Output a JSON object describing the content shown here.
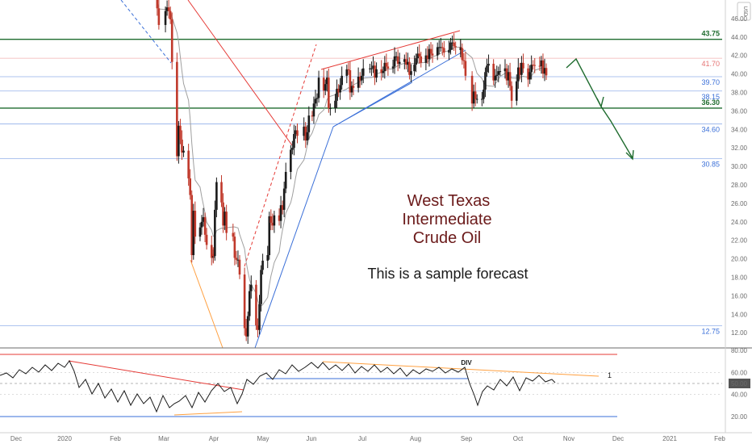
{
  "currency": "USD",
  "annotations": {
    "title_lines": [
      "West Texas",
      "Intermediate",
      "Crude Oil"
    ],
    "note": "This is a sample forecast",
    "div_label": "DIV",
    "rsi_marker": "1"
  },
  "colors": {
    "candle_up": "#1a1a1a",
    "candle_down": "#c0392b",
    "trend_red": "#e53935",
    "trend_blue": "#3a6fd8",
    "orange": "#ffa040",
    "green_level": "#1e6b2e",
    "forecast_arrow": "#1e6b2e",
    "ma": "#a0a0a0"
  },
  "chart_data": {
    "type": "candlestick",
    "price_axis": {
      "ylim": [
        10.5,
        48.0
      ],
      "ticks": [
        "12.00",
        "14.00",
        "16.00",
        "18.00",
        "20.00",
        "22.00",
        "24.00",
        "26.00",
        "28.00",
        "30.00",
        "32.00",
        "34.00",
        "36.00",
        "38.00",
        "40.00",
        "42.00",
        "44.00",
        "46.00"
      ]
    },
    "time_axis": {
      "labels": [
        "Dec",
        "2020",
        "Feb",
        "Mar",
        "Apr",
        "May",
        "Jun",
        "Jul",
        "Aug",
        "Sep",
        "Oct",
        "Nov",
        "Dec",
        "2021",
        "Feb"
      ]
    },
    "levels": [
      {
        "value": 43.75,
        "label": "43.75",
        "color": "#1e6b2e",
        "style": "major"
      },
      {
        "value": 41.7,
        "label": "41.70",
        "color": "#e57373",
        "style": "minor"
      },
      {
        "value": 39.7,
        "label": "39.70",
        "color": "#3a6fd8",
        "style": "minor"
      },
      {
        "value": 38.15,
        "label": "38.15",
        "color": "#3a6fd8",
        "style": "minor"
      },
      {
        "value": 36.3,
        "label": "36.30",
        "color": "#1e6b2e",
        "style": "major"
      },
      {
        "value": 34.6,
        "label": "34.60",
        "color": "#3a6fd8",
        "style": "minor"
      },
      {
        "value": 30.85,
        "label": "30.85",
        "color": "#3a6fd8",
        "style": "minor"
      },
      {
        "value": 12.75,
        "label": "12.75",
        "color": "#3a6fd8",
        "style": "minor"
      }
    ],
    "series": [
      {
        "name": "",
        "type": "candlestick",
        "values": [
          {
            "t": "Feb 26",
            "close": 48.7
          },
          {
            "t": "Feb 27",
            "close": 47.1
          },
          {
            "t": "Feb 28",
            "close": 45.3
          },
          {
            "t": "Mar 02",
            "close": 46.8
          },
          {
            "t": "Mar 03",
            "close": 47.2
          },
          {
            "t": "Mar 04",
            "close": 46.8
          },
          {
            "t": "Mar 05",
            "close": 45.9
          },
          {
            "t": "Mar 06",
            "close": 41.3
          },
          {
            "t": "Mar 09",
            "close": 31.1
          },
          {
            "t": "Mar 10",
            "close": 34.4
          },
          {
            "t": "Mar 11",
            "close": 32.9
          },
          {
            "t": "Mar 12",
            "close": 31.5
          },
          {
            "t": "Mar 13",
            "close": 31.7
          },
          {
            "t": "Mar 16",
            "close": 28.7
          },
          {
            "t": "Mar 17",
            "close": 26.9
          },
          {
            "t": "Mar 18",
            "close": 20.4
          },
          {
            "t": "Mar 19",
            "close": 25.2
          },
          {
            "t": "Mar 20",
            "close": 22.4
          },
          {
            "t": "Mar 23",
            "close": 23.4
          },
          {
            "t": "Mar 24",
            "close": 24.0
          },
          {
            "t": "Mar 25",
            "close": 24.5
          },
          {
            "t": "Mar 26",
            "close": 22.6
          },
          {
            "t": "Mar 27",
            "close": 21.5
          },
          {
            "t": "Mar 30",
            "close": 20.1
          },
          {
            "t": "Mar 31",
            "close": 20.5
          },
          {
            "t": "Apr 01",
            "close": 20.3
          },
          {
            "t": "Apr 02",
            "close": 25.3
          },
          {
            "t": "Apr 03",
            "close": 28.3
          },
          {
            "t": "Apr 06",
            "close": 26.1
          },
          {
            "t": "Apr 07",
            "close": 23.6
          },
          {
            "t": "Apr 08",
            "close": 25.1
          },
          {
            "t": "Apr 09",
            "close": 22.8
          },
          {
            "t": "Apr 13",
            "close": 22.4
          },
          {
            "t": "Apr 14",
            "close": 20.1
          },
          {
            "t": "Apr 15",
            "close": 19.9
          },
          {
            "t": "Apr 16",
            "close": 19.9
          },
          {
            "t": "Apr 17",
            "close": 18.3
          },
          {
            "t": "Apr 20",
            "close": 12.5
          },
          {
            "t": "Apr 21",
            "close": 11.6
          },
          {
            "t": "Apr 22",
            "close": 13.8
          },
          {
            "t": "Apr 23",
            "close": 16.5
          },
          {
            "t": "Apr 24",
            "close": 17.2
          },
          {
            "t": "Apr 27",
            "close": 12.8
          },
          {
            "t": "Apr 28",
            "close": 12.3
          },
          {
            "t": "Apr 29",
            "close": 15.1
          },
          {
            "t": "Apr 30",
            "close": 18.8
          },
          {
            "t": "May 01",
            "close": 19.8
          },
          {
            "t": "May 04",
            "close": 20.4
          },
          {
            "t": "May 05",
            "close": 24.6
          },
          {
            "t": "May 06",
            "close": 23.9
          },
          {
            "t": "May 07",
            "close": 23.6
          },
          {
            "t": "May 08",
            "close": 24.7
          },
          {
            "t": "May 11",
            "close": 24.1
          },
          {
            "t": "May 12",
            "close": 25.8
          },
          {
            "t": "May 13",
            "close": 25.3
          },
          {
            "t": "May 14",
            "close": 27.6
          },
          {
            "t": "May 15",
            "close": 29.4
          },
          {
            "t": "May 18",
            "close": 31.8
          },
          {
            "t": "May 19",
            "close": 32.0
          },
          {
            "t": "May 20",
            "close": 33.5
          },
          {
            "t": "May 21",
            "close": 33.9
          },
          {
            "t": "May 22",
            "close": 33.3
          },
          {
            "t": "May 26",
            "close": 34.3
          },
          {
            "t": "May 27",
            "close": 32.8
          },
          {
            "t": "May 28",
            "close": 33.7
          },
          {
            "t": "May 29",
            "close": 35.5
          },
          {
            "t": "Jun 01",
            "close": 35.4
          },
          {
            "t": "Jun 02",
            "close": 36.8
          },
          {
            "t": "Jun 03",
            "close": 37.3
          },
          {
            "t": "Jun 04",
            "close": 37.4
          },
          {
            "t": "Jun 05",
            "close": 39.6
          },
          {
            "t": "Jun 08",
            "close": 38.2
          },
          {
            "t": "Jun 09",
            "close": 38.9
          },
          {
            "t": "Jun 10",
            "close": 39.6
          },
          {
            "t": "Jun 11",
            "close": 36.3
          },
          {
            "t": "Jun 12",
            "close": 36.3
          },
          {
            "t": "Jun 15",
            "close": 37.1
          },
          {
            "t": "Jun 16",
            "close": 38.4
          },
          {
            "t": "Jun 17",
            "close": 38.0
          },
          {
            "t": "Jun 18",
            "close": 38.8
          },
          {
            "t": "Jun 19",
            "close": 39.8
          },
          {
            "t": "Jun 22",
            "close": 40.5
          },
          {
            "t": "Jun 23",
            "close": 40.4
          },
          {
            "t": "Jun 24",
            "close": 38.0
          },
          {
            "t": "Jun 25",
            "close": 38.7
          },
          {
            "t": "Jun 26",
            "close": 38.5
          },
          {
            "t": "Jun 29",
            "close": 39.7
          },
          {
            "t": "Jun 30",
            "close": 39.3
          },
          {
            "t": "Jul 01",
            "close": 39.8
          },
          {
            "t": "Jul 02",
            "close": 40.6
          },
          {
            "t": "Jul 06",
            "close": 40.6
          },
          {
            "t": "Jul 07",
            "close": 40.6
          },
          {
            "t": "Jul 08",
            "close": 40.9
          },
          {
            "t": "Jul 09",
            "close": 39.6
          },
          {
            "t": "Jul 10",
            "close": 40.5
          },
          {
            "t": "Jul 13",
            "close": 40.1
          },
          {
            "t": "Jul 14",
            "close": 40.3
          },
          {
            "t": "Jul 15",
            "close": 41.2
          },
          {
            "t": "Jul 16",
            "close": 40.8
          },
          {
            "t": "Jul 17",
            "close": 40.6
          },
          {
            "t": "Jul 20",
            "close": 40.8
          },
          {
            "t": "Jul 21",
            "close": 41.9
          },
          {
            "t": "Jul 22",
            "close": 41.9
          },
          {
            "t": "Jul 23",
            "close": 41.1
          },
          {
            "t": "Jul 24",
            "close": 41.3
          },
          {
            "t": "Jul 27",
            "close": 41.6
          },
          {
            "t": "Jul 28",
            "close": 41.0
          },
          {
            "t": "Jul 29",
            "close": 41.3
          },
          {
            "t": "Jul 30",
            "close": 39.9
          },
          {
            "t": "Jul 31",
            "close": 40.3
          },
          {
            "t": "Aug 03",
            "close": 41.0
          },
          {
            "t": "Aug 04",
            "close": 41.7
          },
          {
            "t": "Aug 05",
            "close": 42.2
          },
          {
            "t": "Aug 06",
            "close": 41.9
          },
          {
            "t": "Aug 07",
            "close": 41.2
          },
          {
            "t": "Aug 10",
            "close": 42.0
          },
          {
            "t": "Aug 11",
            "close": 41.6
          },
          {
            "t": "Aug 12",
            "close": 42.7
          },
          {
            "t": "Aug 13",
            "close": 42.2
          },
          {
            "t": "Aug 14",
            "close": 42.0
          },
          {
            "t": "Aug 17",
            "close": 42.9
          },
          {
            "t": "Aug 18",
            "close": 42.9
          },
          {
            "t": "Aug 19",
            "close": 42.9
          },
          {
            "t": "Aug 20",
            "close": 42.8
          },
          {
            "t": "Aug 21",
            "close": 42.3
          },
          {
            "t": "Aug 24",
            "close": 42.6
          },
          {
            "t": "Aug 25",
            "close": 43.4
          },
          {
            "t": "Aug 26",
            "close": 43.4
          },
          {
            "t": "Aug 27",
            "close": 43.0
          },
          {
            "t": "Aug 28",
            "close": 42.9
          },
          {
            "t": "Aug 31",
            "close": 42.6
          },
          {
            "t": "Sep 01",
            "close": 42.8
          },
          {
            "t": "Sep 02",
            "close": 41.5
          },
          {
            "t": "Sep 03",
            "close": 41.4
          },
          {
            "t": "Sep 04",
            "close": 39.8
          },
          {
            "t": "Sep 08",
            "close": 36.8
          },
          {
            "t": "Sep 09",
            "close": 38.1
          },
          {
            "t": "Sep 10",
            "close": 37.3
          },
          {
            "t": "Sep 11",
            "close": 37.3
          },
          {
            "t": "Sep 14",
            "close": 37.3
          },
          {
            "t": "Sep 15",
            "close": 38.3
          },
          {
            "t": "Sep 16",
            "close": 40.2
          },
          {
            "t": "Sep 17",
            "close": 40.9
          },
          {
            "t": "Sep 18",
            "close": 41.1
          },
          {
            "t": "Sep 21",
            "close": 39.3
          },
          {
            "t": "Sep 22",
            "close": 39.8
          },
          {
            "t": "Sep 23",
            "close": 39.9
          },
          {
            "t": "Sep 24",
            "close": 40.3
          },
          {
            "t": "Sep 25",
            "close": 40.3
          },
          {
            "t": "Sep 28",
            "close": 40.6
          },
          {
            "t": "Sep 29",
            "close": 39.3
          },
          {
            "t": "Sep 30",
            "close": 40.2
          },
          {
            "t": "Oct 01",
            "close": 38.7
          },
          {
            "t": "Oct 02",
            "close": 37.1
          },
          {
            "t": "Oct 05",
            "close": 39.2
          },
          {
            "t": "Oct 06",
            "close": 40.7
          },
          {
            "t": "Oct 07",
            "close": 39.9
          },
          {
            "t": "Oct 08",
            "close": 41.2
          },
          {
            "t": "Oct 09",
            "close": 40.6
          },
          {
            "t": "Oct 12",
            "close": 39.4
          },
          {
            "t": "Oct 13",
            "close": 40.2
          },
          {
            "t": "Oct 14",
            "close": 41.0
          },
          {
            "t": "Oct 15",
            "close": 40.96
          },
          {
            "t": "Oct 16",
            "close": 40.88
          },
          {
            "t": "Oct 19",
            "close": 40.83
          },
          {
            "t": "Oct 20",
            "close": 41.46
          },
          {
            "t": "Oct 21",
            "close": 40.03
          },
          {
            "t": "Oct 22",
            "close": 40.64
          },
          {
            "t": "Oct 23",
            "close": 39.85
          }
        ]
      }
    ],
    "oscillator": {
      "ticks": [
        "20.00",
        "40.00",
        "50.00",
        "60.00",
        "80.00"
      ],
      "ylim": [
        10,
        85
      ],
      "highlight": "50.00"
    },
    "grid": false,
    "legend": "none"
  }
}
